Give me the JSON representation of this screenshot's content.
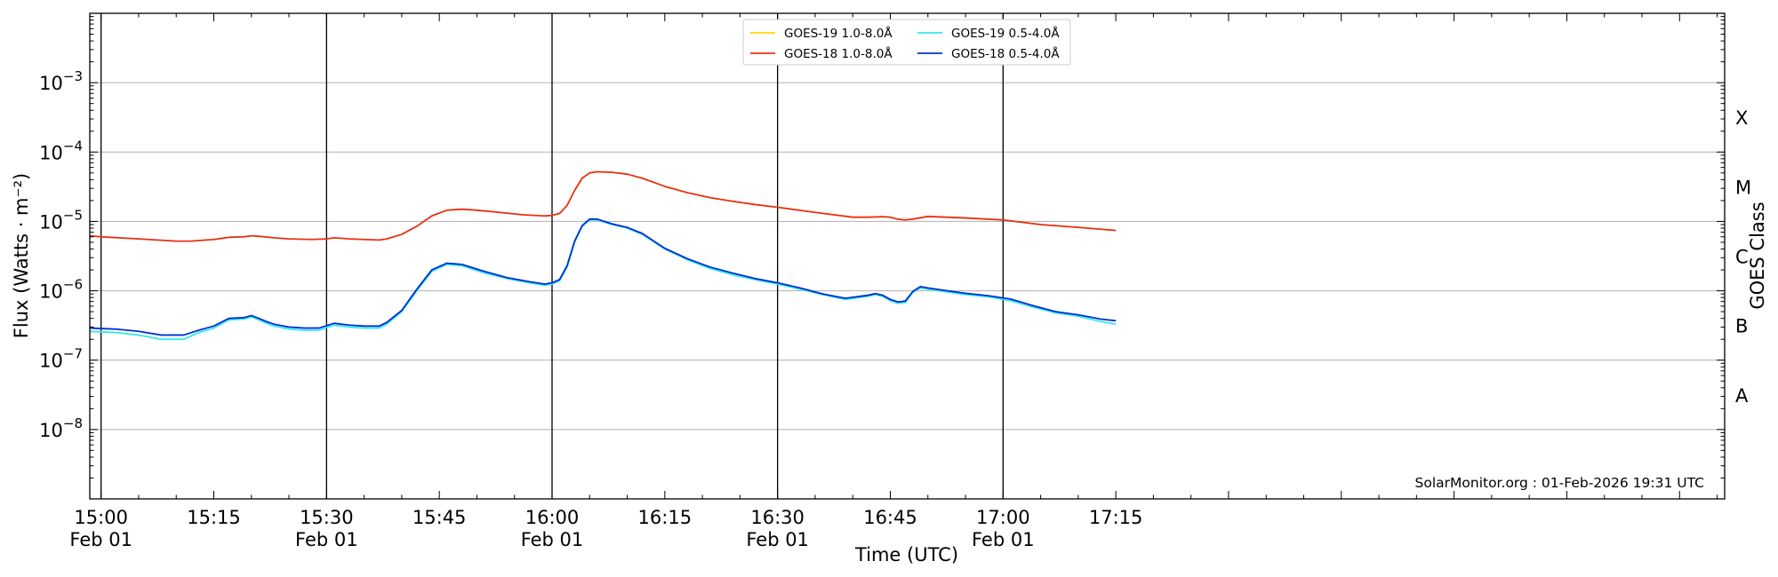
{
  "chart_data": {
    "type": "line",
    "title": "",
    "xlabel": "Time (UTC)",
    "ylabel": "Flux (Watts · m⁻²)",
    "y2label": "GOES Class",
    "yscale": "log",
    "ylim": [
      1e-09,
      0.01
    ],
    "xlim_minutes": [
      -1.5,
      216
    ],
    "x_start_time": "14:58:30",
    "grid": "horizontal at decades",
    "legend_position": "top-center",
    "credit": "SolarMonitor.org : 01-Feb-2026 19:31 UTC",
    "y_ticks": [
      {
        "value": 0.001,
        "base": "10",
        "exp": "−3"
      },
      {
        "value": 0.0001,
        "base": "10",
        "exp": "−4"
      },
      {
        "value": 1e-05,
        "base": "10",
        "exp": "−5"
      },
      {
        "value": 1e-06,
        "base": "10",
        "exp": "−6"
      },
      {
        "value": 1e-07,
        "base": "10",
        "exp": "−7"
      },
      {
        "value": 1e-08,
        "base": "10",
        "exp": "−8"
      }
    ],
    "x_ticks": [
      {
        "minute": 0,
        "time": "15:00",
        "date": "Feb 01"
      },
      {
        "minute": 15,
        "time": "15:15",
        "date": ""
      },
      {
        "minute": 30,
        "time": "15:30",
        "date": "Feb 01"
      },
      {
        "minute": 45,
        "time": "15:45",
        "date": ""
      },
      {
        "minute": 60,
        "time": "16:00",
        "date": "Feb 01"
      },
      {
        "minute": 75,
        "time": "16:15",
        "date": ""
      },
      {
        "minute": 90,
        "time": "16:30",
        "date": "Feb 01"
      },
      {
        "minute": 105,
        "time": "16:45",
        "date": ""
      },
      {
        "minute": 120,
        "time": "17:00",
        "date": "Feb 01"
      },
      {
        "minute": 135,
        "time": "17:15",
        "date": ""
      }
    ],
    "vertical_lines_minutes": [
      0,
      30,
      60,
      90,
      120
    ],
    "goes_classes": [
      {
        "label": "X",
        "flux": 0.000316
      },
      {
        "label": "M",
        "flux": 3.16e-05
      },
      {
        "label": "C",
        "flux": 3.16e-06
      },
      {
        "label": "B",
        "flux": 3.16e-07
      },
      {
        "label": "A",
        "flux": 3.16e-08
      }
    ],
    "series": [
      {
        "name": "GOES-19 1.0-8.0Å",
        "color": "#ffd700",
        "x": [],
        "y": []
      },
      {
        "name": "GOES-19 0.5-4.0Å",
        "color": "#33e8f0",
        "x": [
          -1.5,
          2,
          5,
          8,
          11,
          13,
          15,
          17,
          19,
          20,
          21,
          22,
          23,
          25,
          27,
          29,
          31,
          33,
          35,
          37,
          38,
          40,
          42,
          44,
          46,
          48,
          51,
          54,
          57,
          59,
          60,
          61,
          62,
          63,
          64,
          65,
          66,
          68,
          70,
          72,
          75,
          78,
          81,
          84,
          87,
          90,
          93,
          96,
          99,
          102,
          103,
          104,
          105,
          106,
          107,
          108,
          109,
          110,
          112,
          115,
          118,
          121,
          124,
          127,
          130,
          133,
          135
        ],
        "y": [
          2.6e-07,
          2.5e-07,
          2.3e-07,
          2e-07,
          2e-07,
          2.5e-07,
          2.9e-07,
          3.8e-07,
          3.9e-07,
          4.2e-07,
          3.8e-07,
          3.4e-07,
          3.1e-07,
          2.8e-07,
          2.7e-07,
          2.7e-07,
          3.2e-07,
          3e-07,
          2.9e-07,
          2.9e-07,
          3.3e-07,
          5e-07,
          1e-06,
          1.9e-06,
          2.4e-06,
          2.3e-06,
          1.8e-06,
          1.5e-06,
          1.3e-06,
          1.2e-06,
          1.25e-06,
          1.4e-06,
          2.2e-06,
          5e-06,
          8.5e-06,
          1.05e-05,
          1.05e-05,
          9e-06,
          8e-06,
          6.5e-06,
          4e-06,
          2.8e-06,
          2.1e-06,
          1.7e-06,
          1.45e-06,
          1.25e-06,
          1.05e-06,
          8.8e-07,
          7.5e-07,
          8.3e-07,
          8.8e-07,
          8.3e-07,
          7.2e-07,
          6.6e-07,
          6.8e-07,
          9.5e-07,
          1.1e-06,
          1.05e-06,
          9.8e-07,
          8.8e-07,
          8.2e-07,
          7.2e-07,
          5.8e-07,
          4.8e-07,
          4.3e-07,
          3.6e-07,
          3.3e-07
        ]
      },
      {
        "name": "GOES-18 1.0-8.0Å",
        "color": "#e83010",
        "x": [
          -1.5,
          0,
          5,
          10,
          12,
          15,
          17,
          19,
          20,
          21,
          23,
          25,
          28,
          30,
          31,
          33,
          35,
          37,
          38,
          40,
          42,
          44,
          46,
          48,
          50,
          53,
          56,
          59,
          60,
          61,
          62,
          63,
          64,
          65,
          66,
          68,
          70,
          72,
          75,
          78,
          81,
          84,
          87,
          90,
          95,
          100,
          102,
          104,
          105,
          106,
          107,
          108,
          110,
          115,
          120,
          125,
          130,
          135
        ],
        "y": [
          6.2e-06,
          6e-06,
          5.6e-06,
          5.2e-06,
          5.2e-06,
          5.5e-06,
          5.9e-06,
          6e-06,
          6.2e-06,
          6.1e-06,
          5.8e-06,
          5.6e-06,
          5.5e-06,
          5.6e-06,
          5.8e-06,
          5.6e-06,
          5.5e-06,
          5.4e-06,
          5.6e-06,
          6.5e-06,
          8.5e-06,
          1.2e-05,
          1.45e-05,
          1.5e-05,
          1.45e-05,
          1.35e-05,
          1.25e-05,
          1.2e-05,
          1.22e-05,
          1.3e-05,
          1.7e-05,
          2.8e-05,
          4.2e-05,
          5e-05,
          5.2e-05,
          5.1e-05,
          4.8e-05,
          4.2e-05,
          3.2e-05,
          2.6e-05,
          2.2e-05,
          1.95e-05,
          1.75e-05,
          1.6e-05,
          1.35e-05,
          1.15e-05,
          1.15e-05,
          1.17e-05,
          1.15e-05,
          1.08e-05,
          1.05e-05,
          1.08e-05,
          1.18e-05,
          1.12e-05,
          1.05e-05,
          9e-06,
          8.2e-06,
          7.4e-06
        ]
      },
      {
        "name": "GOES-18 0.5-4.0Å",
        "color": "#0030d0",
        "x": [
          -1.5,
          2,
          5,
          8,
          11,
          13,
          15,
          17,
          19,
          20,
          21,
          22,
          23,
          25,
          27,
          29,
          31,
          33,
          35,
          37,
          38,
          40,
          42,
          44,
          46,
          48,
          51,
          54,
          57,
          59,
          60,
          61,
          62,
          63,
          64,
          65,
          66,
          68,
          70,
          72,
          75,
          78,
          81,
          84,
          87,
          90,
          93,
          96,
          99,
          102,
          103,
          104,
          105,
          106,
          107,
          108,
          109,
          110,
          112,
          115,
          118,
          121,
          124,
          127,
          130,
          133,
          135
        ],
        "y": [
          2.9e-07,
          2.8e-07,
          2.6e-07,
          2.3e-07,
          2.3e-07,
          2.7e-07,
          3.1e-07,
          4e-07,
          4.1e-07,
          4.4e-07,
          4e-07,
          3.6e-07,
          3.3e-07,
          3e-07,
          2.9e-07,
          2.9e-07,
          3.4e-07,
          3.2e-07,
          3.1e-07,
          3.1e-07,
          3.5e-07,
          5.2e-07,
          1.05e-06,
          2e-06,
          2.5e-06,
          2.4e-06,
          1.9e-06,
          1.55e-06,
          1.35e-06,
          1.25e-06,
          1.3e-06,
          1.45e-06,
          2.3e-06,
          5.2e-06,
          8.7e-06,
          1.08e-05,
          1.08e-05,
          9.2e-06,
          8.2e-06,
          6.7e-06,
          4.1e-06,
          2.9e-06,
          2.2e-06,
          1.8e-06,
          1.5e-06,
          1.3e-06,
          1.1e-06,
          9e-07,
          7.8e-07,
          8.6e-07,
          9.1e-07,
          8.6e-07,
          7.5e-07,
          6.9e-07,
          7.1e-07,
          9.8e-07,
          1.15e-06,
          1.1e-06,
          1.02e-06,
          9.2e-07,
          8.5e-07,
          7.6e-07,
          6.1e-07,
          5e-07,
          4.5e-07,
          3.9e-07,
          3.7e-07
        ]
      }
    ],
    "legend_order": [
      0,
      1,
      2,
      3
    ]
  }
}
